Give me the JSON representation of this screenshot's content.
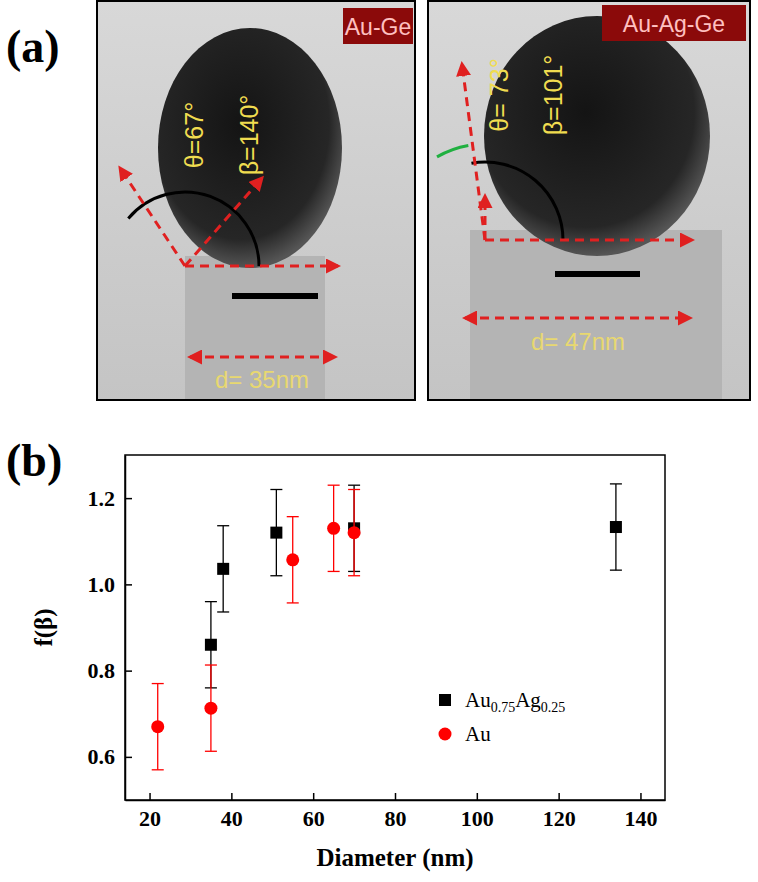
{
  "panel_labels": [
    "(a)",
    "(b)"
  ],
  "images": [
    {
      "label": "Au-Ge",
      "theta": "θ=67°",
      "beta": "β=140°",
      "d": "d= 35nm"
    },
    {
      "label": "Au-Ag-Ge",
      "theta": "θ= 73°",
      "beta": "β=101°",
      "d": "d= 47nm"
    }
  ],
  "chart_data": {
    "type": "scatter",
    "x_label": "Diameter (nm)",
    "y_label": "f(β)",
    "xlim": [
      14,
      146
    ],
    "xticks": [
      20,
      40,
      60,
      80,
      100,
      120,
      140
    ],
    "ylim": [
      0.5,
      1.3
    ],
    "yticks": [
      0.6,
      0.8,
      {
        "value": 1,
        "label": "1.0"
      },
      1.2
    ],
    "legend": "lower right",
    "series": [
      {
        "name": "Au0.75Ag0.25",
        "color": "#000000",
        "marker": "square",
        "x": [
          35,
          38,
          51,
          70,
          134
        ],
        "values": [
          0.86,
          1.036,
          1.12,
          1.13,
          1.133
        ],
        "errors": [
          0.1,
          0.1,
          0.1,
          0.1,
          0.1
        ]
      },
      {
        "name": "Au",
        "color": "#ff0000",
        "marker": "circle",
        "x": [
          22,
          35,
          55,
          65,
          70
        ],
        "values": [
          0.67,
          0.713,
          1.057,
          1.13,
          1.12
        ],
        "errors": [
          0.1,
          0.1,
          0.1,
          0.1,
          0.1
        ]
      }
    ]
  }
}
